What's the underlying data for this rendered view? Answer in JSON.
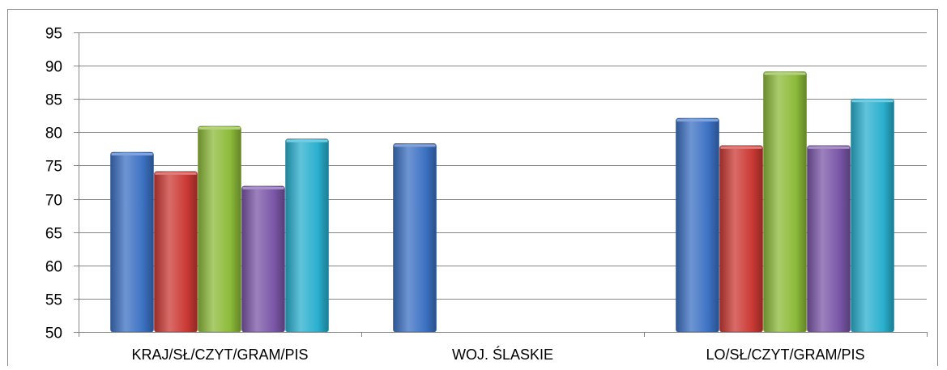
{
  "chart_data": {
    "type": "bar",
    "title": "",
    "xlabel": "",
    "ylabel": "",
    "ylim": [
      50,
      95
    ],
    "yticks": [
      50,
      55,
      60,
      65,
      70,
      75,
      80,
      85,
      90,
      95
    ],
    "grid": true,
    "legend": "none",
    "categories": [
      "KRAJ/SŁ/CZYT/GRAM/PIS",
      "WOJ. ŚLASKIE",
      "LO/SŁ/CZYT/GRAM/PIS"
    ],
    "series": [
      {
        "color": "#3d72c4",
        "values": [
          77,
          78.3,
          82.1
        ]
      },
      {
        "color": "#cc3a35",
        "values": [
          74.1,
          null,
          78
        ]
      },
      {
        "color": "#8dbb3a",
        "values": [
          80.9,
          null,
          89.1
        ]
      },
      {
        "color": "#7b57a8",
        "values": [
          71.9,
          null,
          78
        ]
      },
      {
        "color": "#2ab0cf",
        "values": [
          79,
          null,
          85
        ]
      }
    ]
  }
}
